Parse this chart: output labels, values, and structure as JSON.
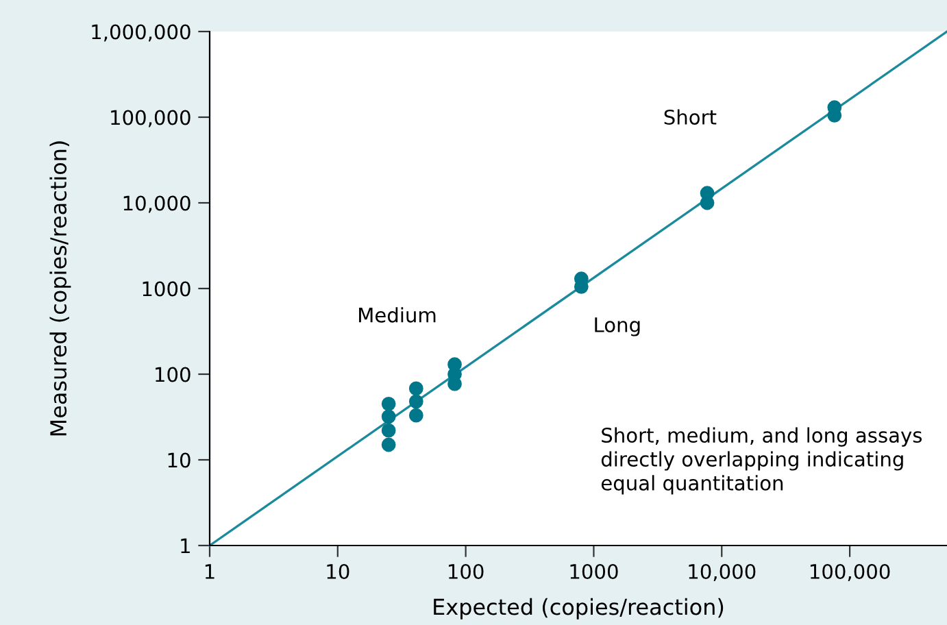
{
  "chart_data": {
    "type": "scatter",
    "xlabel": "Expected (copies/reaction)",
    "ylabel": "Measured (copies/reaction)",
    "log": "xy",
    "xlim": [
      1,
      575000
    ],
    "ylim": [
      1,
      1000000
    ],
    "xticks": [
      1,
      10,
      100,
      {
        "value": 1000,
        "label": "1000"
      },
      {
        "value": 10000,
        "label": "10,000"
      },
      {
        "value": 100000,
        "label": "100,000"
      }
    ],
    "yticks": [
      1,
      10,
      100,
      {
        "value": 1000,
        "label": "1000"
      },
      {
        "value": 10000,
        "label": "10,000"
      },
      {
        "value": 100000,
        "label": "100,000"
      },
      {
        "value": 1000000,
        "label": "1,000,000"
      }
    ],
    "grid": false,
    "series": [
      {
        "marker": "circle",
        "color": "#00778a",
        "x": [
          25,
          25,
          25,
          25,
          41,
          41,
          41,
          82,
          82,
          82,
          800,
          800,
          7700,
          7700,
          76000,
          76000
        ],
        "values": [
          15,
          22,
          32,
          45,
          33,
          48,
          68,
          77,
          100,
          130,
          1050,
          1300,
          10000,
          13000,
          105000,
          130000
        ]
      },
      {
        "type": "line",
        "color": "#1a8a9c",
        "x": [
          1,
          575000
        ],
        "values": [
          1,
          1000000
        ]
      }
    ],
    "annotations": [
      "Short",
      "Medium",
      "Long",
      "Short, medium, and long assays\ndirectly overlapping indicating\nequal quantitation"
    ]
  }
}
